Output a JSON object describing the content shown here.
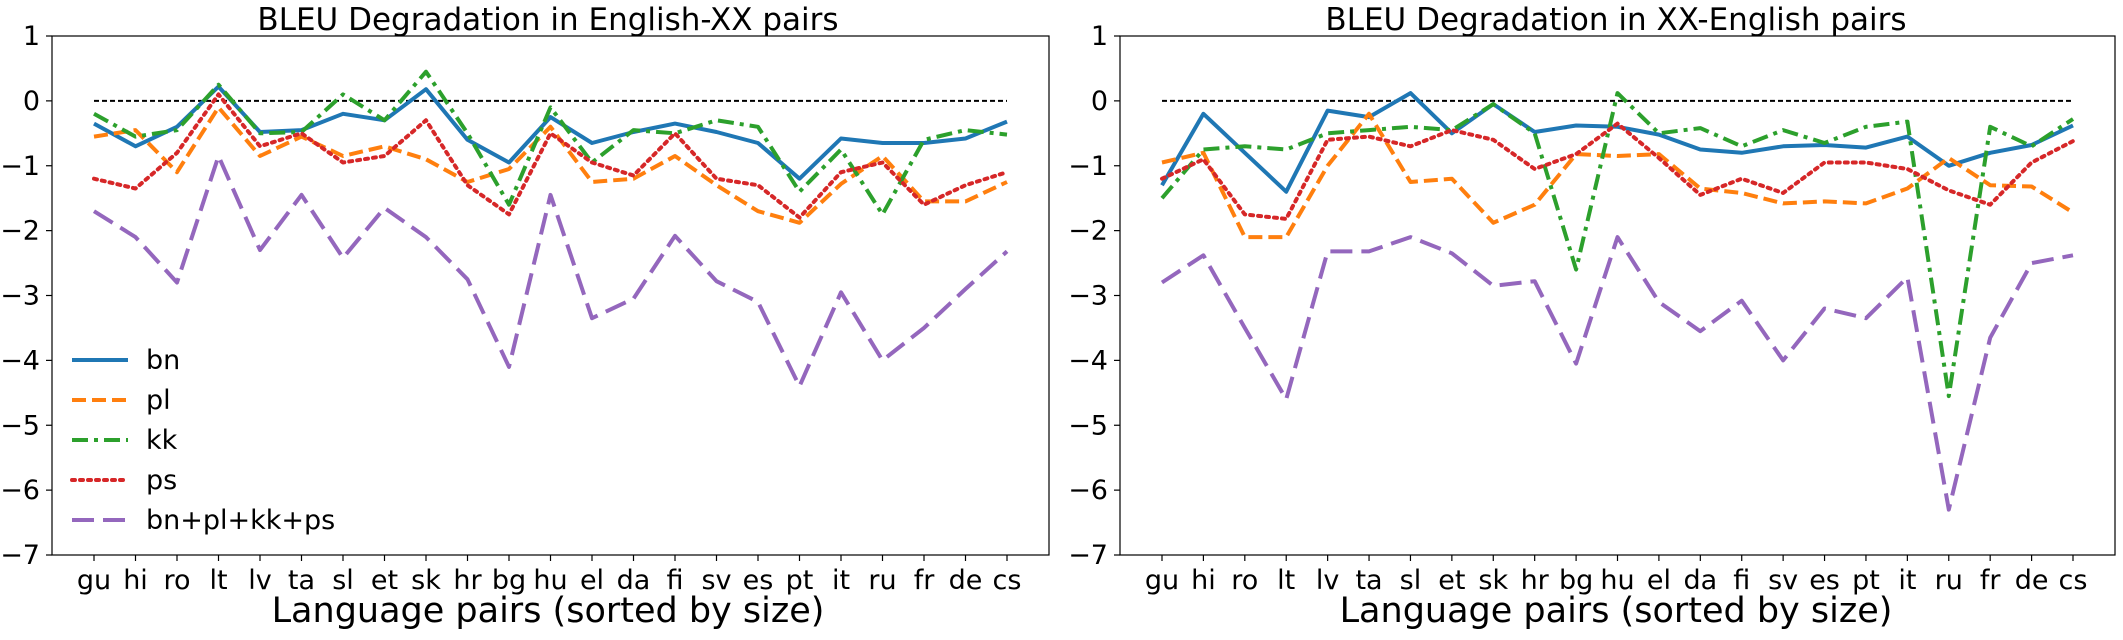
{
  "chart_data": [
    {
      "type": "line",
      "title": "BLEU Degradation in English-XX pairs",
      "xlabel": "Language pairs (sorted by size)",
      "ylabel": "",
      "ylim": [
        -7,
        1
      ],
      "yticks": [
        "1",
        "0",
        "−1",
        "−2",
        "−3",
        "−4",
        "−5",
        "−6",
        "−7"
      ],
      "categories": [
        "gu",
        "hi",
        "ro",
        "lt",
        "lv",
        "ta",
        "sl",
        "et",
        "sk",
        "hr",
        "bg",
        "hu",
        "el",
        "da",
        "fi",
        "sv",
        "es",
        "pt",
        "it",
        "ru",
        "fr",
        "de",
        "cs"
      ],
      "reference_line": 0,
      "legend_position": "lower-left",
      "grid": false,
      "series": [
        {
          "name": "bn",
          "color": "#1f77b4",
          "dash": "solid",
          "values": [
            -0.35,
            -0.7,
            -0.4,
            0.22,
            -0.48,
            -0.45,
            -0.2,
            -0.3,
            0.18,
            -0.6,
            -0.95,
            -0.25,
            -0.65,
            -0.48,
            -0.35,
            -0.48,
            -0.65,
            -1.2,
            -0.58,
            -0.65,
            -0.65,
            -0.58,
            -0.32
          ]
        },
        {
          "name": "pl",
          "color": "#ff7f0e",
          "dash": "dashed",
          "values": [
            -0.55,
            -0.45,
            -1.1,
            -0.1,
            -0.85,
            -0.55,
            -0.85,
            -0.7,
            -0.9,
            -1.25,
            -1.05,
            -0.4,
            -1.25,
            -1.2,
            -0.85,
            -1.3,
            -1.7,
            -1.88,
            -1.28,
            -0.85,
            -1.55,
            -1.55,
            -1.25
          ]
        },
        {
          "name": "kk",
          "color": "#2ca02c",
          "dash": "dashdot",
          "values": [
            -0.2,
            -0.55,
            -0.45,
            0.25,
            -0.5,
            -0.48,
            0.1,
            -0.3,
            0.45,
            -0.5,
            -1.6,
            -0.1,
            -0.95,
            -0.45,
            -0.5,
            -0.3,
            -0.4,
            -1.4,
            -0.75,
            -1.75,
            -0.6,
            -0.45,
            -0.52
          ]
        },
        {
          "name": "ps",
          "color": "#d62728",
          "dash": "dotted",
          "values": [
            -1.2,
            -1.35,
            -0.8,
            0.1,
            -0.7,
            -0.5,
            -0.95,
            -0.85,
            -0.3,
            -1.3,
            -1.75,
            -0.5,
            -0.95,
            -1.15,
            -0.5,
            -1.2,
            -1.3,
            -1.8,
            -1.1,
            -0.95,
            -1.6,
            -1.3,
            -1.1
          ]
        },
        {
          "name": "bn+pl+kk+ps",
          "color": "#9467bd",
          "dash": "longdash",
          "values": [
            -1.7,
            -2.1,
            -2.8,
            -0.85,
            -2.3,
            -1.45,
            -2.42,
            -1.65,
            -2.1,
            -2.75,
            -4.1,
            -1.45,
            -3.35,
            -3.05,
            -2.08,
            -2.78,
            -3.1,
            -4.4,
            -2.95,
            -4.0,
            -3.5,
            -2.9,
            -2.32
          ]
        }
      ]
    },
    {
      "type": "line",
      "title": "BLEU Degradation in XX-English pairs",
      "xlabel": "Language pairs (sorted by size)",
      "ylabel": "",
      "ylim": [
        -7,
        1
      ],
      "yticks": [
        "1",
        "0",
        "−1",
        "−2",
        "−3",
        "−4",
        "−5",
        "−6",
        "−7"
      ],
      "categories": [
        "gu",
        "hi",
        "ro",
        "lt",
        "lv",
        "ta",
        "sl",
        "et",
        "sk",
        "hr",
        "bg",
        "hu",
        "el",
        "da",
        "fi",
        "sv",
        "es",
        "pt",
        "it",
        "ru",
        "fr",
        "de",
        "cs"
      ],
      "reference_line": 0,
      "grid": false,
      "series": [
        {
          "name": "bn",
          "color": "#1f77b4",
          "dash": "solid",
          "values": [
            -1.3,
            -0.2,
            -0.8,
            -1.4,
            -0.15,
            -0.25,
            0.12,
            -0.5,
            -0.05,
            -0.48,
            -0.38,
            -0.4,
            -0.52,
            -0.75,
            -0.8,
            -0.7,
            -0.68,
            -0.72,
            -0.55,
            -1.0,
            -0.8,
            -0.68,
            -0.38
          ]
        },
        {
          "name": "pl",
          "color": "#ff7f0e",
          "dash": "dashed",
          "values": [
            -0.95,
            -0.8,
            -2.1,
            -2.1,
            -1.0,
            -0.2,
            -1.25,
            -1.2,
            -1.88,
            -1.6,
            -0.82,
            -0.85,
            -0.82,
            -1.35,
            -1.42,
            -1.58,
            -1.55,
            -1.58,
            -1.35,
            -0.88,
            -1.3,
            -1.32,
            -1.72
          ]
        },
        {
          "name": "kk",
          "color": "#2ca02c",
          "dash": "dashdot",
          "values": [
            -1.5,
            -0.75,
            -0.7,
            -0.75,
            -0.5,
            -0.45,
            -0.4,
            -0.45,
            -0.05,
            -0.5,
            -2.6,
            0.12,
            -0.5,
            -0.42,
            -0.7,
            -0.45,
            -0.65,
            -0.4,
            -0.32,
            -4.55,
            -0.4,
            -0.7,
            -0.28
          ]
        },
        {
          "name": "ps",
          "color": "#d62728",
          "dash": "dotted",
          "values": [
            -1.2,
            -0.9,
            -1.75,
            -1.82,
            -0.6,
            -0.55,
            -0.7,
            -0.45,
            -0.6,
            -1.05,
            -0.82,
            -0.35,
            -0.88,
            -1.45,
            -1.2,
            -1.42,
            -0.95,
            -0.95,
            -1.05,
            -1.38,
            -1.6,
            -0.95,
            -0.62
          ]
        },
        {
          "name": "bn+pl+kk+ps",
          "color": "#9467bd",
          "dash": "longdash",
          "values": [
            -2.8,
            -2.38,
            -3.5,
            -4.6,
            -2.32,
            -2.32,
            -2.1,
            -2.35,
            -2.85,
            -2.78,
            -4.05,
            -2.1,
            -3.1,
            -3.55,
            -3.08,
            -4.0,
            -3.2,
            -3.35,
            -2.72,
            -6.3,
            -3.65,
            -2.5,
            -2.38
          ]
        }
      ]
    }
  ]
}
